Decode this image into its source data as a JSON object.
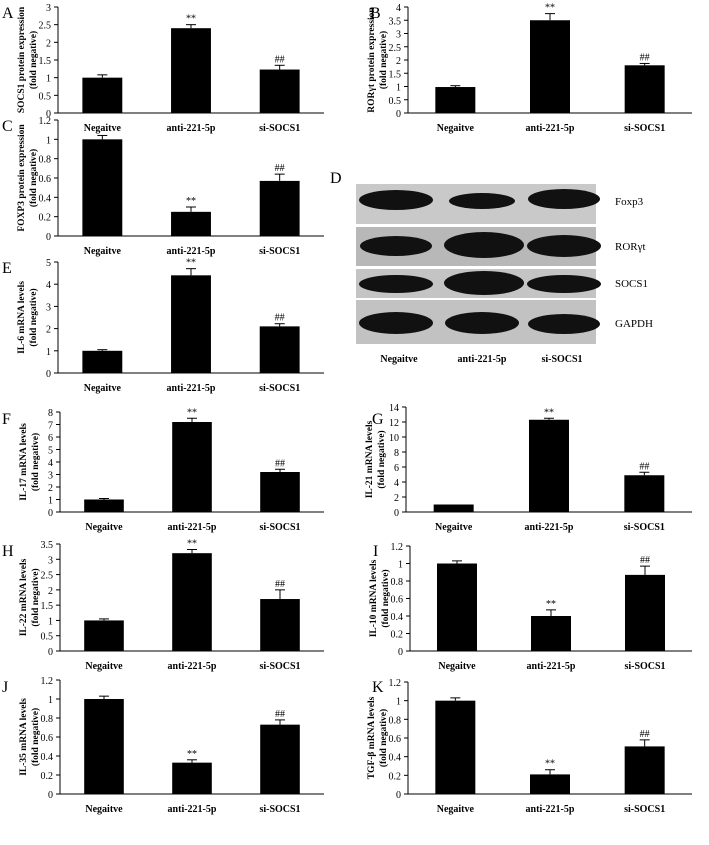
{
  "chart_data": [
    {
      "panel": "A",
      "type": "bar",
      "categories": [
        "Negaitve",
        "anti-221-5p",
        "si-SOCS1"
      ],
      "values": [
        1.0,
        2.4,
        1.23
      ],
      "errors": [
        0.08,
        0.1,
        0.12
      ],
      "annotations": [
        "",
        "**",
        "##"
      ],
      "ylabel": [
        "SOCS1 protein expression",
        "(fold negative)"
      ],
      "ylim": [
        0,
        3
      ],
      "ticks": [
        "0",
        "0.5",
        "1",
        "1.5",
        "2",
        "2.5",
        "3"
      ]
    },
    {
      "panel": "B",
      "type": "bar",
      "categories": [
        "Negaitve",
        "anti-221-5p",
        "si-SOCS1"
      ],
      "values": [
        0.98,
        3.5,
        1.8
      ],
      "errors": [
        0.05,
        0.25,
        0.07
      ],
      "annotations": [
        "",
        "**",
        "##"
      ],
      "ylabel": [
        "RORγt protein expression",
        "(fold negative)"
      ],
      "ylim": [
        0,
        4
      ],
      "ticks": [
        "0",
        "0.5",
        "1",
        "1.5",
        "2",
        "2.5",
        "3",
        "3.5",
        "4"
      ]
    },
    {
      "panel": "C",
      "type": "bar",
      "categories": [
        "Negaitve",
        "anti-221-5p",
        "si-SOCS1"
      ],
      "values": [
        1.0,
        0.25,
        0.57
      ],
      "errors": [
        0.04,
        0.05,
        0.07
      ],
      "annotations": [
        "",
        "**",
        "##"
      ],
      "ylabel": [
        "FOXP3 protein expression",
        "(fold negative)"
      ],
      "ylim": [
        0,
        1.2
      ],
      "ticks": [
        "0",
        "0.2",
        "0.4",
        "0.6",
        "0.8",
        "1",
        "1.2"
      ]
    },
    {
      "panel": "E",
      "type": "bar",
      "categories": [
        "Negaitve",
        "anti-221-5p",
        "si-SOCS1"
      ],
      "values": [
        1.0,
        4.4,
        2.1
      ],
      "errors": [
        0.05,
        0.3,
        0.12
      ],
      "annotations": [
        "",
        "**",
        "##"
      ],
      "ylabel": [
        "IL-6 mRNA levels",
        "(fold negative)"
      ],
      "ylim": [
        0,
        5
      ],
      "ticks": [
        "0",
        "1",
        "2",
        "3",
        "4",
        "5"
      ]
    },
    {
      "panel": "F",
      "type": "bar",
      "categories": [
        "Negaitve",
        "anti-221-5p",
        "si-SOCS1"
      ],
      "values": [
        1.0,
        7.2,
        3.2
      ],
      "errors": [
        0.08,
        0.3,
        0.22
      ],
      "annotations": [
        "",
        "**",
        "##"
      ],
      "ylabel": [
        "IL-17 mRNA levels",
        "(fold negative)"
      ],
      "ylim": [
        0,
        8
      ],
      "ticks": [
        "0",
        "1",
        "2",
        "3",
        "4",
        "5",
        "6",
        "7",
        "8"
      ]
    },
    {
      "panel": "G",
      "type": "bar",
      "categories": [
        "Negaitve",
        "anti-221-5p",
        "si-SOCS1"
      ],
      "values": [
        1.0,
        12.3,
        4.9
      ],
      "errors": [
        0,
        0.2,
        0.4
      ],
      "annotations": [
        "",
        "**",
        "##"
      ],
      "ylabel": [
        "IL-21 mRNA levels",
        "(fold negative)"
      ],
      "ylim": [
        0,
        14
      ],
      "ticks": [
        "0",
        "2",
        "4",
        "6",
        "8",
        "10",
        "12",
        "14"
      ]
    },
    {
      "panel": "H",
      "type": "bar",
      "categories": [
        "Negaitve",
        "anti-221-5p",
        "si-SOCS1"
      ],
      "values": [
        1.0,
        3.2,
        1.7
      ],
      "errors": [
        0.05,
        0.12,
        0.3
      ],
      "annotations": [
        "",
        "**",
        "##"
      ],
      "ylabel": [
        "IL-22 mRNA levels",
        "(fold negative)"
      ],
      "ylim": [
        0,
        3.5
      ],
      "ticks": [
        "0",
        "0.5",
        "1",
        "1.5",
        "2",
        "2.5",
        "3",
        "3.5"
      ]
    },
    {
      "panel": "I",
      "type": "bar",
      "categories": [
        "Negaitve",
        "anti-221-5p",
        "si-SOCS1"
      ],
      "values": [
        1.0,
        0.4,
        0.87
      ],
      "errors": [
        0.03,
        0.07,
        0.1
      ],
      "annotations": [
        "",
        "**",
        "##"
      ],
      "ylabel": [
        "IL-10 mRNA levels",
        "(fold negative)"
      ],
      "ylim": [
        0,
        1.2
      ],
      "ticks": [
        "0",
        "0.2",
        "0.4",
        "0.6",
        "0.8",
        "1",
        "1.2"
      ]
    },
    {
      "panel": "J",
      "type": "bar",
      "categories": [
        "Negaitve",
        "anti-221-5p",
        "si-SOCS1"
      ],
      "values": [
        1.0,
        0.33,
        0.73
      ],
      "errors": [
        0.03,
        0.03,
        0.05
      ],
      "annotations": [
        "",
        "**",
        "##"
      ],
      "ylabel": [
        "IL-35 mRNA levels",
        "(fold negative)"
      ],
      "ylim": [
        0,
        1.2
      ],
      "ticks": [
        "0",
        "0.2",
        "0.4",
        "0.6",
        "0.8",
        "1",
        "1.2"
      ]
    },
    {
      "panel": "K",
      "type": "bar",
      "categories": [
        "Negaitve",
        "anti-221-5p",
        "si-SOCS1"
      ],
      "values": [
        1.0,
        0.21,
        0.51
      ],
      "errors": [
        0.03,
        0.05,
        0.07
      ],
      "annotations": [
        "",
        "**",
        "##"
      ],
      "ylabel": [
        "TGF-β mRNA levels",
        "(fold negative)"
      ],
      "ylim": [
        0,
        1.2
      ],
      "ticks": [
        "0",
        "0.2",
        "0.4",
        "0.6",
        "0.8",
        "1",
        "1.2"
      ]
    }
  ],
  "western_blot": {
    "panel": "D",
    "proteins": [
      "Foxp3",
      "RORγt",
      "SOCS1",
      "GAPDH"
    ],
    "lanes": [
      "Negaitve",
      "anti-221-5p",
      "si-SOCS1"
    ]
  }
}
